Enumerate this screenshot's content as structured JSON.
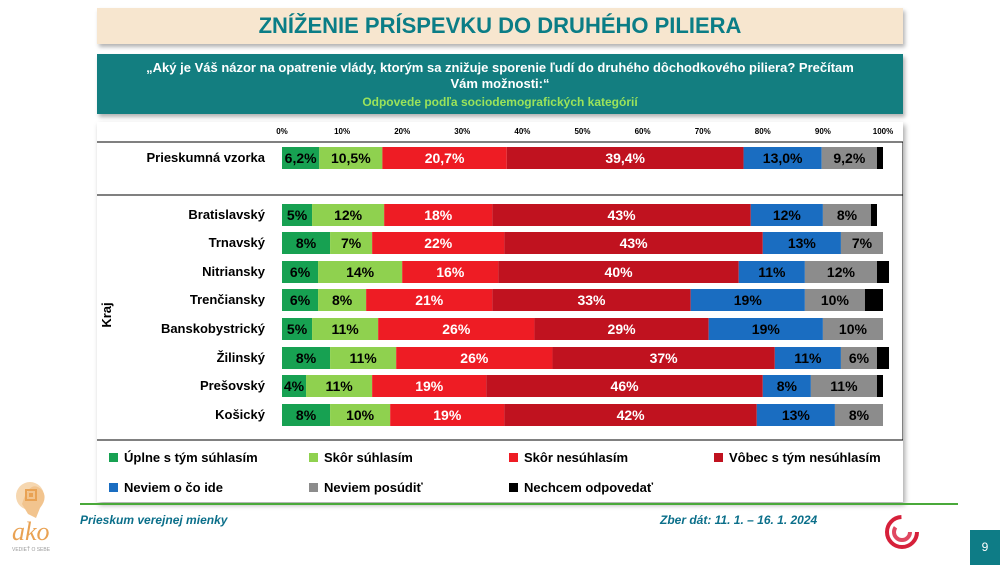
{
  "header": {
    "title": "ZNÍŽENIE PRÍSPEVKU DO DRUHÉHO PILIERA",
    "question": "„Aký je Váš názor na opatrenie vlády, ktorým sa znižuje sporenie ľudí do druhého dôchodkového piliera? Prečítam Vám možnosti:“",
    "subtitle": "Odpovede podľa sociodemografických kategórií"
  },
  "colors": {
    "green_dark": "#17a152",
    "green_light": "#8fd14f",
    "red": "#ee1c24",
    "dark_red": "#c0121f",
    "blue": "#1a6dc1",
    "gray": "#8c8c8c",
    "black": "#000000",
    "teal": "#137e80"
  },
  "chart_data": {
    "type": "bar",
    "orientation": "horizontal",
    "stacked": true,
    "xlim": [
      0,
      100
    ],
    "x_ticks": [
      "0%",
      "10%",
      "20%",
      "30%",
      "40%",
      "50%",
      "60%",
      "70%",
      "80%",
      "90%",
      "100%"
    ],
    "group_label": "Kraj",
    "categories": [
      "Prieskumná vzorka",
      "Bratislavský",
      "Trnavský",
      "Nitriansky",
      "Trenčiansky",
      "Banskobystrický",
      "Žilinský",
      "Prešovský",
      "Košický"
    ],
    "series": [
      {
        "name": "Úplne s tým súhlasím",
        "color": "#17a152",
        "values": [
          6.2,
          5,
          8,
          6,
          6,
          5,
          8,
          4,
          8
        ],
        "labels": [
          "6,2%",
          "5%",
          "8%",
          "6%",
          "6%",
          "5%",
          "8%",
          "4%",
          "8%"
        ]
      },
      {
        "name": "Skôr súhlasím",
        "color": "#8fd14f",
        "values": [
          10.5,
          12,
          7,
          14,
          8,
          11,
          11,
          11,
          10
        ],
        "labels": [
          "10,5%",
          "12%",
          "7%",
          "14%",
          "8%",
          "11%",
          "11%",
          "11%",
          "10%"
        ]
      },
      {
        "name": "Skôr nesúhlasím",
        "color": "#ee1c24",
        "values": [
          20.7,
          18,
          22,
          16,
          21,
          26,
          26,
          19,
          19
        ],
        "labels": [
          "20,7%",
          "18%",
          "22%",
          "16%",
          "21%",
          "26%",
          "26%",
          "19%",
          "19%"
        ]
      },
      {
        "name": "Vôbec s tým nesúhlasím",
        "color": "#c0121f",
        "values": [
          39.4,
          43,
          43,
          40,
          33,
          29,
          37,
          46,
          42
        ],
        "labels": [
          "39,4%",
          "43%",
          "43%",
          "40%",
          "33%",
          "29%",
          "37%",
          "46%",
          "42%"
        ]
      },
      {
        "name": "Neviem o čo ide",
        "color": "#1a6dc1",
        "values": [
          13.0,
          12,
          13,
          11,
          19,
          19,
          11,
          8,
          13
        ],
        "labels": [
          "13,0%",
          "12%",
          "13%",
          "11%",
          "19%",
          "19%",
          "11%",
          "8%",
          "13%"
        ]
      },
      {
        "name": "Neviem posúdiť",
        "color": "#8c8c8c",
        "values": [
          9.2,
          8,
          7,
          12,
          10,
          10,
          6,
          11,
          8
        ],
        "labels": [
          "9,2%",
          "8%",
          "7%",
          "12%",
          "10%",
          "10%",
          "6%",
          "11%",
          "8%"
        ]
      },
      {
        "name": "Nechcem odpovedať",
        "color": "#000000",
        "values": [
          1.0,
          1,
          0,
          2,
          3,
          0,
          2,
          1,
          0
        ],
        "labels": [
          "",
          "",
          "",
          "",
          "",
          "",
          "",
          "",
          ""
        ]
      }
    ]
  },
  "footer": {
    "left": "Prieskum verejnej mienky",
    "right": "Zber dát: 11. 1. – 16. 1. 2024",
    "page": "9",
    "logo_text": "ako",
    "logo_tagline": "VEDIEŤ O SEBE"
  }
}
